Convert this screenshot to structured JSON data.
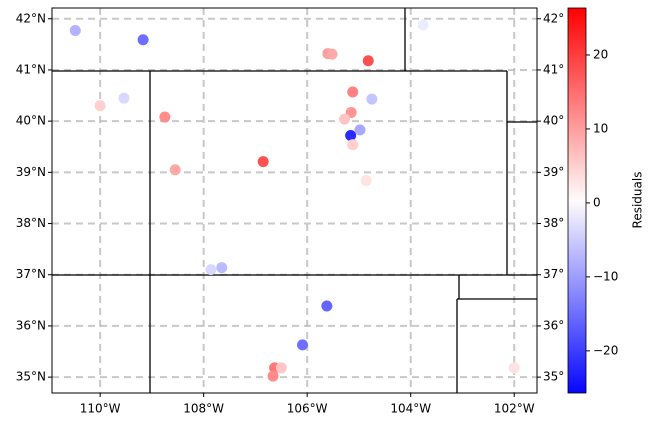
{
  "chart_data": {
    "type": "scatter",
    "x": [
      -110.48,
      -109.17,
      -105.6,
      -105.52,
      -104.82,
      -110.0,
      -109.54,
      -108.75,
      -105.12,
      -104.75,
      -105.15,
      -105.28,
      -105.16,
      -104.98,
      -105.12,
      -106.85,
      -108.55,
      -104.86,
      -107.86,
      -107.65,
      -105.62,
      -106.09,
      -106.63,
      -106.66,
      -106.5,
      -103.76,
      -102.0
    ],
    "y": [
      41.77,
      41.59,
      41.32,
      41.31,
      41.18,
      40.3,
      40.45,
      40.08,
      40.57,
      40.43,
      40.17,
      40.04,
      39.72,
      39.83,
      39.54,
      39.21,
      39.05,
      38.84,
      37.1,
      37.14,
      36.39,
      35.63,
      35.18,
      35.02,
      35.18,
      41.88,
      35.18
    ],
    "residuals": [
      -8,
      -15,
      10,
      9,
      18,
      5,
      -4,
      12,
      13,
      -6,
      11,
      6,
      -22,
      -9,
      5,
      18,
      9,
      3,
      -4,
      -7,
      -16,
      -15,
      14,
      12,
      6,
      -2,
      3
    ],
    "xlim": [
      -110.93,
      -101.56
    ],
    "ylim": [
      34.69,
      42.21
    ],
    "xticks": [
      {
        "value": -110,
        "label": "110°W"
      },
      {
        "value": -108,
        "label": "108°W"
      },
      {
        "value": -106,
        "label": "106°W"
      },
      {
        "value": -104,
        "label": "104°W"
      },
      {
        "value": -102,
        "label": "102°W"
      }
    ],
    "yticks": [
      {
        "value": 35,
        "label": "35°N"
      },
      {
        "value": 36,
        "label": "36°N"
      },
      {
        "value": 37,
        "label": "37°N"
      },
      {
        "value": 38,
        "label": "38°N"
      },
      {
        "value": 39,
        "label": "39°N"
      },
      {
        "value": 40,
        "label": "40°N"
      },
      {
        "value": 41,
        "label": "41°N"
      },
      {
        "value": 42,
        "label": "42°N"
      }
    ],
    "y2lim": [
      34.69,
      42.21
    ],
    "y2ticks": [
      {
        "value": 35,
        "label": "35°"
      },
      {
        "value": 36,
        "label": "36°"
      },
      {
        "value": 37,
        "label": "37°"
      },
      {
        "value": 38,
        "label": "38°"
      },
      {
        "value": 39,
        "label": "39°"
      },
      {
        "value": 40,
        "label": "40°"
      },
      {
        "value": 41,
        "label": "41°"
      },
      {
        "value": 42,
        "label": "42°"
      }
    ],
    "grid": true,
    "colorbar": {
      "label": "Residuals",
      "lim": [
        -25.7,
        26.35
      ],
      "ticks": [
        {
          "value": -20,
          "label": "−20"
        },
        {
          "value": -10,
          "label": "−10"
        },
        0,
        10,
        20
      ]
    }
  }
}
